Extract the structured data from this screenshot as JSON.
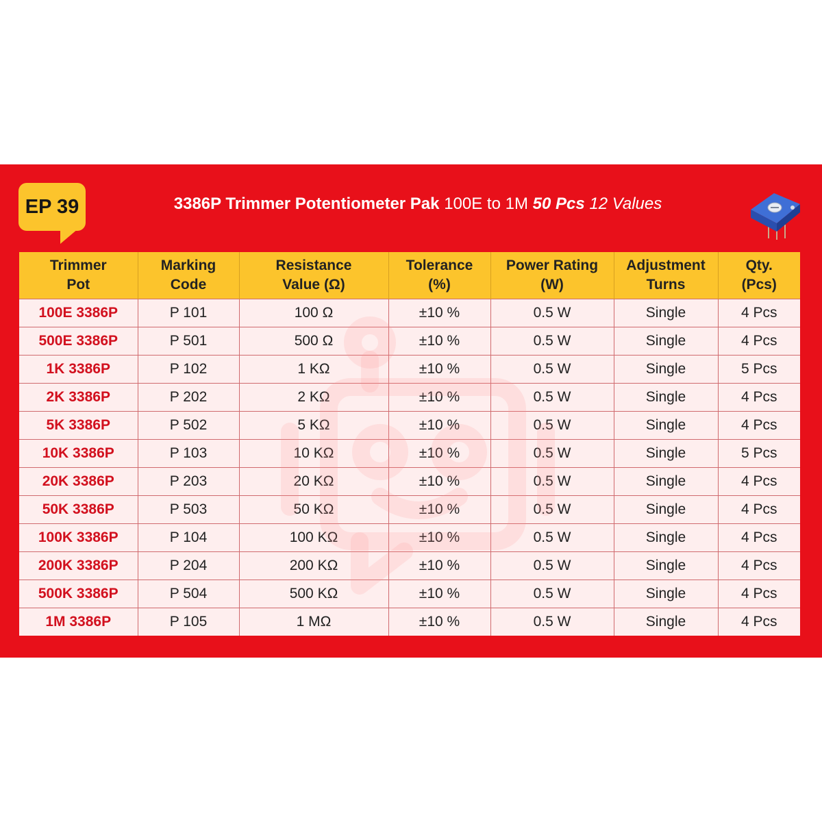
{
  "badge": {
    "label": "EP 39"
  },
  "title": {
    "part1": "3386P Trimmer Potentiometer Pak",
    "part2": "100E to 1M",
    "part3": "50 Pcs",
    "part4": "12 Values"
  },
  "icons": {
    "pot": "trimmer-potentiometer-icon",
    "watermark": "robot-logo-watermark"
  },
  "colors": {
    "banner": "#e8101a",
    "header": "#fcc42c",
    "part_name": "#d2101e"
  },
  "table": {
    "headers": [
      {
        "line1": "Trimmer",
        "line2": "Pot"
      },
      {
        "line1": "Marking",
        "line2": "Code"
      },
      {
        "line1": "Resistance",
        "line2": "Value (Ω)"
      },
      {
        "line1": "Tolerance",
        "line2": "(%)"
      },
      {
        "line1": "Power Rating",
        "line2": "(W)"
      },
      {
        "line1": "Adjustment",
        "line2": "Turns"
      },
      {
        "line1": "Qty.",
        "line2": "(Pcs)"
      }
    ],
    "rows": [
      [
        "100E 3386P",
        "P 101",
        "100 Ω",
        "±10 %",
        "0.5 W",
        "Single",
        "4 Pcs"
      ],
      [
        "500E 3386P",
        "P 501",
        "500 Ω",
        "±10 %",
        "0.5 W",
        "Single",
        "4 Pcs"
      ],
      [
        "1K 3386P",
        "P 102",
        "1 KΩ",
        "±10 %",
        "0.5 W",
        "Single",
        "5 Pcs"
      ],
      [
        "2K 3386P",
        "P 202",
        "2 KΩ",
        "±10 %",
        "0.5 W",
        "Single",
        "4 Pcs"
      ],
      [
        "5K 3386P",
        "P 502",
        "5 KΩ",
        "±10 %",
        "0.5 W",
        "Single",
        "4 Pcs"
      ],
      [
        "10K 3386P",
        "P 103",
        "10 KΩ",
        "±10 %",
        "0.5 W",
        "Single",
        "5 Pcs"
      ],
      [
        "20K 3386P",
        "P 203",
        "20 KΩ",
        "±10 %",
        "0.5 W",
        "Single",
        "4 Pcs"
      ],
      [
        "50K 3386P",
        "P 503",
        "50 KΩ",
        "±10 %",
        "0.5 W",
        "Single",
        "4 Pcs"
      ],
      [
        "100K 3386P",
        "P 104",
        "100 KΩ",
        "±10 %",
        "0.5 W",
        "Single",
        "4 Pcs"
      ],
      [
        "200K 3386P",
        "P 204",
        "200 KΩ",
        "±10 %",
        "0.5 W",
        "Single",
        "4 Pcs"
      ],
      [
        "500K 3386P",
        "P 504",
        "500 KΩ",
        "±10 %",
        "0.5 W",
        "Single",
        "4 Pcs"
      ],
      [
        "1M 3386P",
        "P 105",
        "1 MΩ",
        "±10 %",
        "0.5 W",
        "Single",
        "4 Pcs"
      ]
    ]
  }
}
